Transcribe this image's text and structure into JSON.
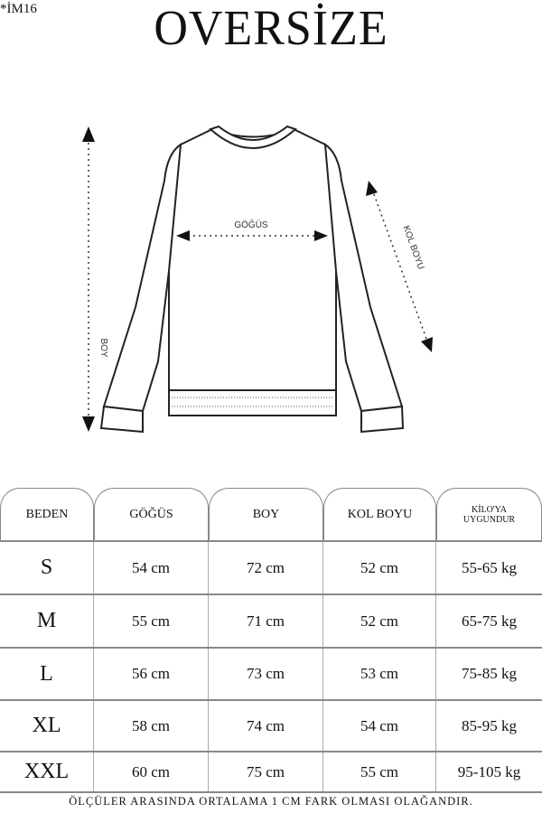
{
  "code": "*İM16",
  "title": "OVERSİZE",
  "diagram": {
    "chest_label": "GÖĞÜS",
    "length_label": "BOY",
    "sleeve_label": "KOL BOYU"
  },
  "table": {
    "headers": [
      "BEDEN",
      "GÖĞÜS",
      "BOY",
      "KOL BOYU",
      "KİLO'YA UYGUNDUR"
    ],
    "header_weight_line1": "KİLO'YA",
    "header_weight_line2": "UYGUNDUR",
    "rows": [
      [
        "S",
        "54 cm",
        "72 cm",
        "52  cm",
        "55-65 kg"
      ],
      [
        "M",
        "55 cm",
        "71 cm",
        "52 cm",
        "65-75 kg"
      ],
      [
        "L",
        "56 cm",
        "73 cm",
        "53 cm",
        "75-85 kg"
      ],
      [
        "XL",
        "58 cm",
        "74 cm",
        "54 cm",
        "85-95 kg"
      ],
      [
        "XXL",
        "60 cm",
        "75 cm",
        "55 cm",
        "95-105 kg"
      ]
    ]
  },
  "footer": "ÖLÇÜLER ARASINDA ORTALAMA 1 CM FARK OLMASI OLAĞANDIR."
}
